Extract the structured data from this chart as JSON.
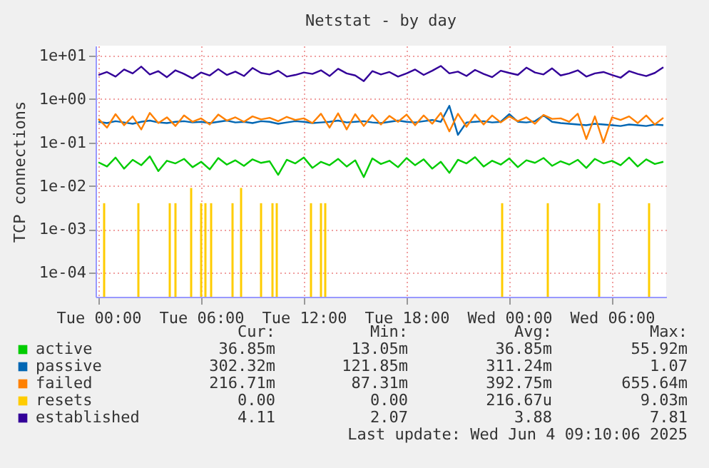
{
  "chart_data": {
    "type": "line",
    "title": "Netstat - by day",
    "ylabel": "TCP connections",
    "x": [
      "2025-06-03T00:00",
      "2025-06-03T00:30",
      "2025-06-03T01:00",
      "2025-06-03T01:30",
      "2025-06-03T02:00",
      "2025-06-03T02:30",
      "2025-06-03T03:00",
      "2025-06-03T03:30",
      "2025-06-03T04:00",
      "2025-06-03T04:30",
      "2025-06-03T05:00",
      "2025-06-03T05:30",
      "2025-06-03T06:00",
      "2025-06-03T06:30",
      "2025-06-03T07:00",
      "2025-06-03T07:30",
      "2025-06-03T08:00",
      "2025-06-03T08:30",
      "2025-06-03T09:00",
      "2025-06-03T09:30",
      "2025-06-03T10:00",
      "2025-06-03T10:30",
      "2025-06-03T11:00",
      "2025-06-03T11:30",
      "2025-06-03T12:00",
      "2025-06-03T12:30",
      "2025-06-03T13:00",
      "2025-06-03T13:30",
      "2025-06-03T14:00",
      "2025-06-03T14:30",
      "2025-06-03T15:00",
      "2025-06-03T15:30",
      "2025-06-03T16:00",
      "2025-06-03T16:30",
      "2025-06-03T17:00",
      "2025-06-03T17:30",
      "2025-06-03T18:00",
      "2025-06-03T18:30",
      "2025-06-03T19:00",
      "2025-06-03T19:30",
      "2025-06-03T20:00",
      "2025-06-03T20:30",
      "2025-06-03T21:00",
      "2025-06-03T21:30",
      "2025-06-03T22:00",
      "2025-06-03T22:30",
      "2025-06-03T23:00",
      "2025-06-03T23:30",
      "2025-06-04T00:00",
      "2025-06-04T00:30",
      "2025-06-04T01:00",
      "2025-06-04T01:30",
      "2025-06-04T02:00",
      "2025-06-04T02:30",
      "2025-06-04T03:00",
      "2025-06-04T03:30",
      "2025-06-04T04:00",
      "2025-06-04T04:30",
      "2025-06-04T05:00",
      "2025-06-04T05:30",
      "2025-06-04T06:00",
      "2025-06-04T06:30",
      "2025-06-04T07:00",
      "2025-06-04T07:30",
      "2025-06-04T08:00",
      "2025-06-04T08:30",
      "2025-06-04T09:00"
    ],
    "series": [
      {
        "name": "active",
        "color": "#00cc00",
        "values": [
          0.035,
          0.028,
          0.045,
          0.025,
          0.04,
          0.03,
          0.048,
          0.022,
          0.038,
          0.033,
          0.042,
          0.027,
          0.036,
          0.024,
          0.044,
          0.031,
          0.039,
          0.029,
          0.041,
          0.034,
          0.037,
          0.018,
          0.04,
          0.033,
          0.045,
          0.026,
          0.036,
          0.03,
          0.042,
          0.028,
          0.039,
          0.016,
          0.043,
          0.032,
          0.038,
          0.027,
          0.044,
          0.03,
          0.041,
          0.025,
          0.036,
          0.02,
          0.04,
          0.033,
          0.046,
          0.028,
          0.038,
          0.031,
          0.043,
          0.027,
          0.039,
          0.034,
          0.044,
          0.029,
          0.037,
          0.031,
          0.04,
          0.026,
          0.042,
          0.033,
          0.038,
          0.03,
          0.045,
          0.028,
          0.041,
          0.032,
          0.036
        ]
      },
      {
        "name": "passive",
        "color": "#0066b3",
        "values": [
          0.3,
          0.28,
          0.31,
          0.29,
          0.27,
          0.3,
          0.32,
          0.29,
          0.28,
          0.3,
          0.31,
          0.29,
          0.3,
          0.28,
          0.3,
          0.32,
          0.29,
          0.3,
          0.28,
          0.31,
          0.3,
          0.27,
          0.29,
          0.31,
          0.3,
          0.28,
          0.29,
          0.3,
          0.32,
          0.29,
          0.3,
          0.31,
          0.29,
          0.28,
          0.3,
          0.32,
          0.3,
          0.29,
          0.31,
          0.33,
          0.3,
          0.7,
          0.15,
          0.29,
          0.3,
          0.31,
          0.29,
          0.3,
          0.45,
          0.3,
          0.29,
          0.31,
          0.42,
          0.3,
          0.28,
          0.27,
          0.26,
          0.25,
          0.27,
          0.26,
          0.25,
          0.24,
          0.26,
          0.25,
          0.24,
          0.26,
          0.25
        ]
      },
      {
        "name": "failed",
        "color": "#ff8000",
        "values": [
          0.35,
          0.22,
          0.45,
          0.25,
          0.4,
          0.2,
          0.48,
          0.28,
          0.38,
          0.24,
          0.42,
          0.3,
          0.36,
          0.26,
          0.44,
          0.32,
          0.38,
          0.3,
          0.4,
          0.34,
          0.37,
          0.31,
          0.39,
          0.33,
          0.36,
          0.28,
          0.46,
          0.22,
          0.47,
          0.2,
          0.45,
          0.24,
          0.43,
          0.26,
          0.41,
          0.3,
          0.44,
          0.25,
          0.42,
          0.27,
          0.48,
          0.18,
          0.46,
          0.23,
          0.44,
          0.26,
          0.42,
          0.29,
          0.4,
          0.31,
          0.38,
          0.27,
          0.43,
          0.35,
          0.36,
          0.3,
          0.46,
          0.12,
          0.4,
          0.1,
          0.38,
          0.33,
          0.4,
          0.28,
          0.42,
          0.26,
          0.37
        ]
      },
      {
        "name": "resets",
        "color": "#ffcc00",
        "type": "bar",
        "x": [
          "2025-06-03T00:20",
          "2025-06-03T02:20",
          "2025-06-03T04:10",
          "2025-06-03T04:30",
          "2025-06-03T05:25",
          "2025-06-03T06:00",
          "2025-06-03T06:15",
          "2025-06-03T06:35",
          "2025-06-03T07:50",
          "2025-06-03T08:20",
          "2025-06-03T09:30",
          "2025-06-03T10:10",
          "2025-06-03T10:25",
          "2025-06-03T12:25",
          "2025-06-03T13:00",
          "2025-06-03T13:15",
          "2025-06-03T23:35",
          "2025-06-04T02:15",
          "2025-06-04T05:15",
          "2025-06-04T08:10"
        ],
        "values": [
          0.004,
          0.004,
          0.004,
          0.004,
          0.009,
          0.004,
          0.004,
          0.004,
          0.004,
          0.009,
          0.004,
          0.004,
          0.004,
          0.004,
          0.004,
          0.004,
          0.004,
          0.004,
          0.004,
          0.004
        ]
      },
      {
        "name": "established",
        "color": "#330099",
        "values": [
          3.6,
          4.2,
          3.3,
          4.8,
          3.9,
          5.6,
          3.7,
          4.4,
          3.2,
          4.6,
          3.8,
          3.0,
          4.1,
          3.5,
          4.9,
          3.6,
          4.3,
          3.4,
          5.2,
          4.0,
          3.7,
          4.5,
          3.3,
          3.6,
          4.1,
          3.8,
          4.6,
          3.4,
          5.0,
          3.9,
          3.5,
          2.6,
          4.4,
          3.7,
          4.2,
          3.3,
          3.9,
          4.8,
          3.6,
          4.5,
          5.8,
          3.9,
          4.3,
          3.4,
          4.7,
          3.8,
          3.2,
          4.5,
          4.0,
          3.6,
          5.3,
          4.1,
          3.7,
          5.1,
          3.5,
          3.9,
          4.6,
          3.3,
          3.9,
          4.2,
          3.6,
          3.1,
          4.4,
          3.8,
          3.4,
          4.0,
          5.4
        ]
      }
    ],
    "log": "y",
    "ylim": [
      2.8e-05,
      17
    ],
    "yticks": [
      {
        "value": 0.0001,
        "label": "1e-04"
      },
      {
        "value": 0.001,
        "label": "1e-03"
      },
      {
        "value": 0.01,
        "label": "1e-02"
      },
      {
        "value": 0.1,
        "label": "1e-01"
      },
      {
        "value": 1,
        "label": "1e+00"
      },
      {
        "value": 10,
        "label": "1e+01"
      }
    ],
    "xlim": [
      "2025-06-02T23:50",
      "2025-06-04T09:10"
    ],
    "xticks": [
      {
        "value": "2025-06-03T00:00",
        "label": "Tue 00:00"
      },
      {
        "value": "2025-06-03T06:00",
        "label": "Tue 06:00"
      },
      {
        "value": "2025-06-03T12:00",
        "label": "Tue 12:00"
      },
      {
        "value": "2025-06-03T18:00",
        "label": "Tue 18:00"
      },
      {
        "value": "2025-06-04T00:00",
        "label": "Wed 00:00"
      },
      {
        "value": "2025-06-04T06:00",
        "label": "Wed 06:00"
      }
    ],
    "grid": true,
    "legend": "bottom",
    "marker": "none",
    "line_style": "solid",
    "annotations": [
      "Cur:",
      "Min:",
      "Avg:",
      "Max:",
      "36.85m",
      "13.05m",
      "36.85m",
      "55.92m",
      "302.32m",
      "121.85m",
      "311.24m",
      "1.07",
      "216.71m",
      "87.31m",
      "392.75m",
      "655.64m",
      "0.00",
      "0.00",
      "216.67u",
      "9.03m",
      "4.11",
      "2.07",
      "3.88",
      "7.81",
      "Last update: Wed Jun  4 09:10:06 2025"
    ]
  }
}
